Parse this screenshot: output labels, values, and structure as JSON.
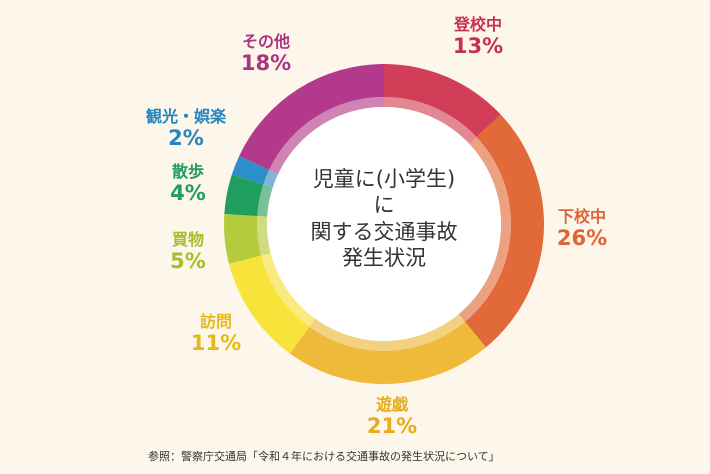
{
  "chart_data": {
    "type": "pie",
    "title": "児童に(小学生)に関する交通事故発生状況",
    "title_lines": [
      "児童に(小学生)",
      "に",
      "関する交通事故",
      "発生状況"
    ],
    "unit": "%",
    "slices": [
      {
        "label": "登校中",
        "value": 13,
        "display": "13%",
        "color": "#d23d57",
        "text_color": "#c6324e"
      },
      {
        "label": "下校中",
        "value": 26,
        "display": "26%",
        "color": "#e1693a",
        "text_color": "#df6433"
      },
      {
        "label": "遊戯",
        "value": 21,
        "display": "21%",
        "color": "#efb93a",
        "text_color": "#e7ab1e"
      },
      {
        "label": "訪問",
        "value": 11,
        "display": "11%",
        "color": "#f7e33a",
        "text_color": "#e6b915"
      },
      {
        "label": "買物",
        "value": 5,
        "display": "5%",
        "color": "#b4cb3c",
        "text_color": "#a8bd2a"
      },
      {
        "label": "散歩",
        "value": 4,
        "display": "4%",
        "color": "#1f9e5d",
        "text_color": "#1f9e5d"
      },
      {
        "label": "観光・娯楽",
        "value": 2,
        "display": "2%",
        "color": "#2c8fca",
        "text_color": "#2585c0"
      },
      {
        "label": "その他",
        "value": 18,
        "display": "18%",
        "color": "#b3398d",
        "text_color": "#ab3383"
      }
    ]
  },
  "footer": "参照：警察庁交通局「令和４年における交通事故の発生状況について」"
}
